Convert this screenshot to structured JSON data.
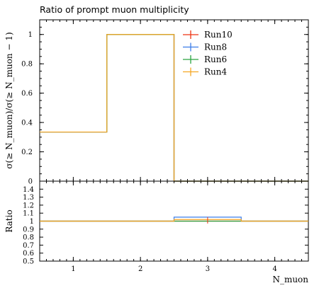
{
  "chart_data": [
    {
      "type": "line",
      "title": "Ratio of prompt muon multiplicity",
      "ylabel": "σ(≥ N_muon)/σ(≥ N_muon − 1)",
      "xlabel": "N_muon",
      "xlim": [
        0.5,
        4.5
      ],
      "ylim": [
        0,
        1.1
      ],
      "x_ticks": [
        "1",
        "2",
        "3",
        "4"
      ],
      "y_ticks": [
        "0",
        "0.2",
        "0.4",
        "0.6",
        "0.8",
        "1"
      ],
      "bin_edges": [
        0.5,
        1.5,
        2.5,
        3.5,
        4.5
      ],
      "series": [
        {
          "name": "Run10",
          "color": "#ee3311",
          "values": [
            0.335,
            1.0,
            0.0,
            0.0
          ]
        },
        {
          "name": "Run8",
          "color": "#3b7de8",
          "values": [
            0.335,
            1.0,
            0.0,
            0.0
          ]
        },
        {
          "name": "Run6",
          "color": "#2aa340",
          "values": [
            0.335,
            1.0,
            0.0,
            0.0
          ]
        },
        {
          "name": "Run4",
          "color": "#f5a623",
          "values": [
            0.335,
            1.0,
            0.0,
            0.0
          ]
        }
      ],
      "legend": "top-right"
    },
    {
      "type": "line",
      "ylabel": "Ratio",
      "xlabel": "N_muon",
      "xlim": [
        0.5,
        4.5
      ],
      "ylim": [
        0.5,
        1.5
      ],
      "x_ticks": [
        "1",
        "2",
        "3",
        "4"
      ],
      "y_ticks": [
        "0.5",
        "0.6",
        "0.7",
        "0.8",
        "0.9",
        "1",
        "1.1",
        "1.2",
        "1.3",
        "1.4"
      ],
      "bin_edges": [
        0.5,
        1.5,
        2.5,
        3.5,
        4.5
      ],
      "series": [
        {
          "name": "Run10",
          "color": "#ee3311",
          "values": [
            1.0,
            1.0,
            1.0,
            1.0
          ]
        },
        {
          "name": "Run8",
          "color": "#3b7de8",
          "values": [
            1.0,
            1.0,
            1.05,
            1.0
          ]
        },
        {
          "name": "Run6",
          "color": "#2aa340",
          "values": [
            1.0,
            1.0,
            1.0,
            1.0
          ]
        },
        {
          "name": "Run4",
          "color": "#f5a623",
          "values": [
            1.0,
            1.0,
            1.02,
            1.0
          ]
        }
      ]
    }
  ]
}
